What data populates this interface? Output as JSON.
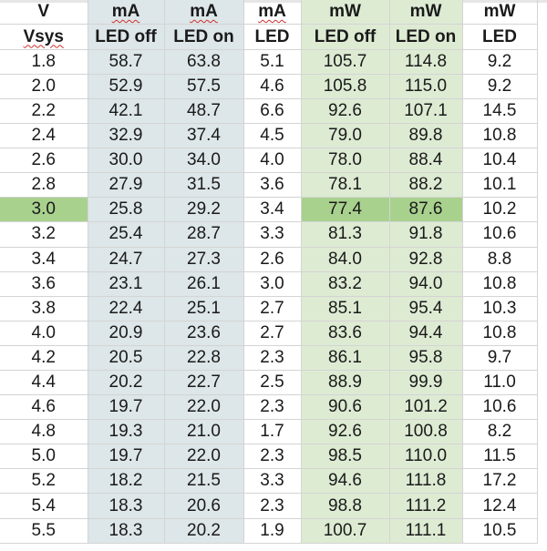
{
  "colors": {
    "current_columns_bg": "#dde6e8",
    "power_columns_bg": "#ddebd3",
    "highlight_row": "#a9d18e",
    "gridline": "#d4d4d4"
  },
  "header_units": [
    "V",
    "mA",
    "mA",
    "mA",
    "mW",
    "mW",
    "mW"
  ],
  "header_labels": [
    "Vsys",
    "LED off",
    "LED on",
    "LED",
    "LED off",
    "LED on",
    "LED"
  ],
  "highlight_row_index": 6,
  "rows": [
    [
      "1.8",
      "58.7",
      "63.8",
      "5.1",
      "105.7",
      "114.8",
      "9.2"
    ],
    [
      "2.0",
      "52.9",
      "57.5",
      "4.6",
      "105.8",
      "115.0",
      "9.2"
    ],
    [
      "2.2",
      "42.1",
      "48.7",
      "6.6",
      "92.6",
      "107.1",
      "14.5"
    ],
    [
      "2.4",
      "32.9",
      "37.4",
      "4.5",
      "79.0",
      "89.8",
      "10.8"
    ],
    [
      "2.6",
      "30.0",
      "34.0",
      "4.0",
      "78.0",
      "88.4",
      "10.4"
    ],
    [
      "2.8",
      "27.9",
      "31.5",
      "3.6",
      "78.1",
      "88.2",
      "10.1"
    ],
    [
      "3.0",
      "25.8",
      "29.2",
      "3.4",
      "77.4",
      "87.6",
      "10.2"
    ],
    [
      "3.2",
      "25.4",
      "28.7",
      "3.3",
      "81.3",
      "91.8",
      "10.6"
    ],
    [
      "3.4",
      "24.7",
      "27.3",
      "2.6",
      "84.0",
      "92.8",
      "8.8"
    ],
    [
      "3.6",
      "23.1",
      "26.1",
      "3.0",
      "83.2",
      "94.0",
      "10.8"
    ],
    [
      "3.8",
      "22.4",
      "25.1",
      "2.7",
      "85.1",
      "95.4",
      "10.3"
    ],
    [
      "4.0",
      "20.9",
      "23.6",
      "2.7",
      "83.6",
      "94.4",
      "10.8"
    ],
    [
      "4.2",
      "20.5",
      "22.8",
      "2.3",
      "86.1",
      "95.8",
      "9.7"
    ],
    [
      "4.4",
      "20.2",
      "22.7",
      "2.5",
      "88.9",
      "99.9",
      "11.0"
    ],
    [
      "4.6",
      "19.7",
      "22.0",
      "2.3",
      "90.6",
      "101.2",
      "10.6"
    ],
    [
      "4.8",
      "19.3",
      "21.0",
      "1.7",
      "92.6",
      "100.8",
      "8.2"
    ],
    [
      "5.0",
      "19.7",
      "22.0",
      "2.3",
      "98.5",
      "110.0",
      "11.5"
    ],
    [
      "5.2",
      "18.2",
      "21.5",
      "3.3",
      "94.6",
      "111.8",
      "17.2"
    ],
    [
      "5.4",
      "18.3",
      "20.6",
      "2.3",
      "98.8",
      "111.2",
      "12.4"
    ],
    [
      "5.5",
      "18.3",
      "20.2",
      "1.9",
      "100.7",
      "111.1",
      "10.5"
    ]
  ]
}
